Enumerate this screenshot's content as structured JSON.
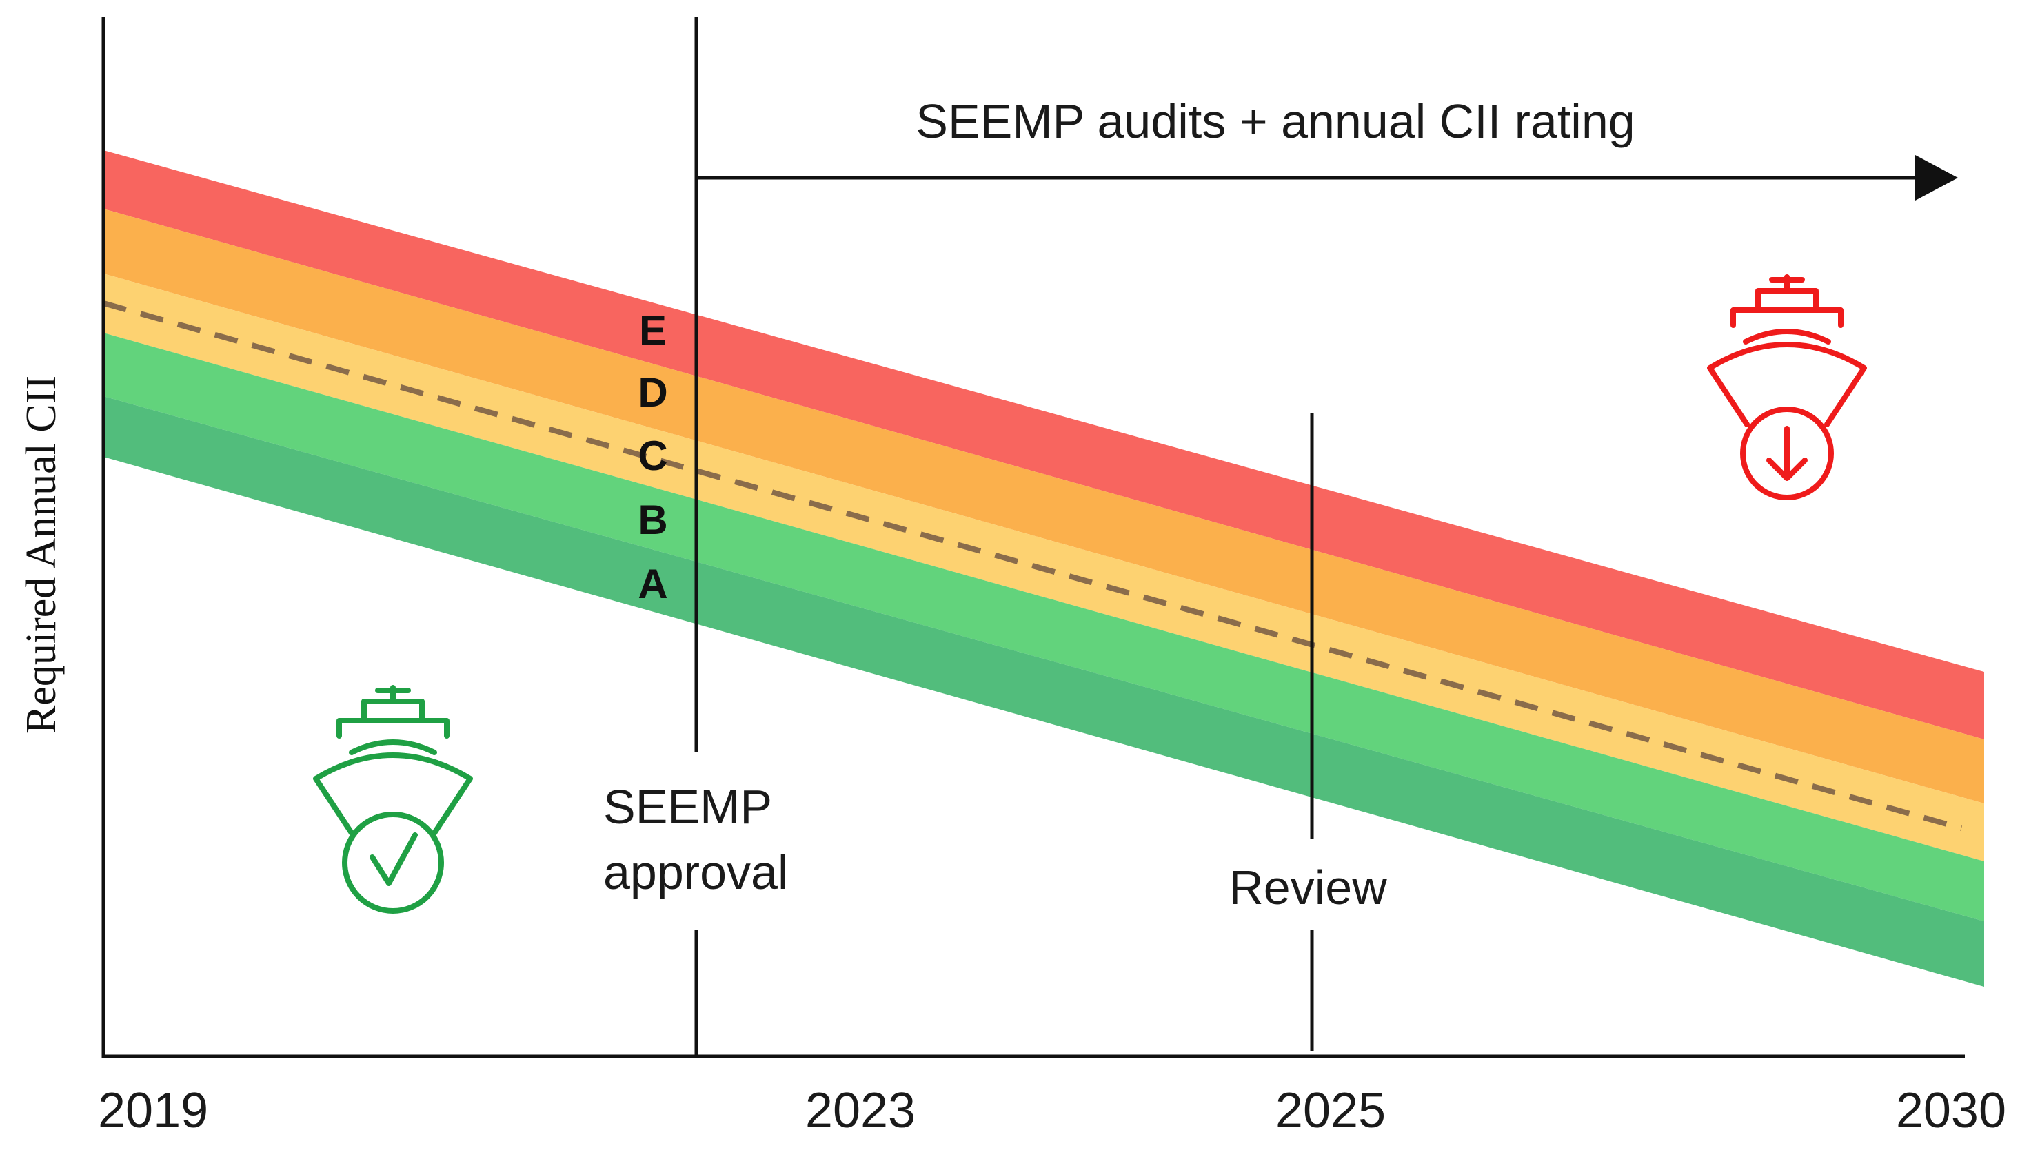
{
  "header": {
    "arrow_label": "SEEMP audits + annual CII rating"
  },
  "axis": {
    "y_label": "Required Annual CII",
    "x_ticks": [
      "2019",
      "2023",
      "2025",
      "2030"
    ]
  },
  "bands": [
    {
      "rating": "E",
      "color": "#f8655f"
    },
    {
      "rating": "D",
      "color": "#fbb04c"
    },
    {
      "rating": "C",
      "color": "#fdd271"
    },
    {
      "rating": "B",
      "color": "#62d37c"
    },
    {
      "rating": "A",
      "color": "#52bd7c"
    }
  ],
  "milestones": {
    "seemp_line1": "SEEMP",
    "seemp_line2": "approval",
    "review": "Review"
  },
  "icons": {
    "compliant_ship": {
      "name": "ship-check-icon",
      "color": "#1fa044"
    },
    "non_compliant_ship": {
      "name": "ship-down-icon",
      "color": "#ef1b1b"
    }
  },
  "colors": {
    "axis": "#111111",
    "dashed_line": "#8a6c4b"
  }
}
